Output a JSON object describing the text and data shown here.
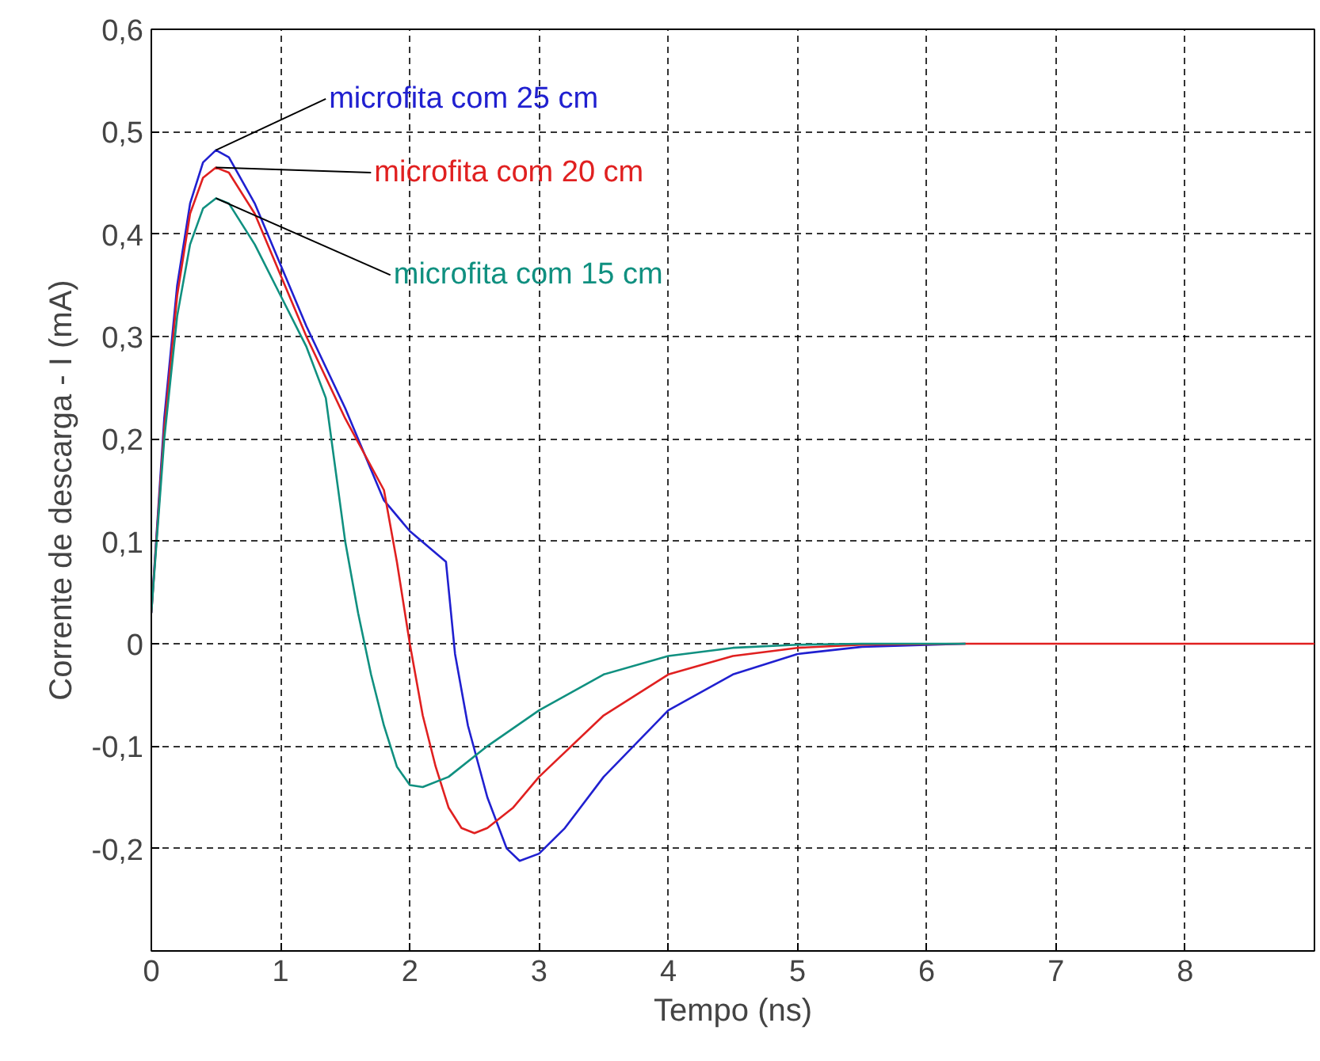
{
  "chart_data": {
    "type": "line",
    "xlabel": "Tempo (ns)",
    "ylabel": "Corrente de descarga - I (mA)",
    "xlim": [
      0,
      9
    ],
    "ylim": [
      -0.3,
      0.6
    ],
    "xticks": [
      0,
      1,
      2,
      3,
      4,
      5,
      6,
      7,
      8
    ],
    "yticks": [
      {
        "value": -0.2,
        "label": "-0,2"
      },
      {
        "value": -0.1,
        "label": "-0,1"
      },
      {
        "value": 0,
        "label": "0"
      },
      {
        "value": 0.1,
        "label": "0,1"
      },
      {
        "value": 0.2,
        "label": "0,2"
      },
      {
        "value": 0.3,
        "label": "0,3"
      },
      {
        "value": 0.4,
        "label": "0,4"
      },
      {
        "value": 0.5,
        "label": "0,5"
      },
      {
        "value": 0.6,
        "label": "0,6"
      }
    ],
    "grid": true,
    "marker": "none",
    "line_style": "solid",
    "series": [
      {
        "name": "microfita com 25 cm",
        "color": "#2020d0",
        "x": [
          0,
          0.1,
          0.2,
          0.3,
          0.4,
          0.5,
          0.6,
          0.8,
          1.0,
          1.2,
          1.5,
          1.8,
          2.0,
          2.28,
          2.35,
          2.45,
          2.6,
          2.75,
          2.85,
          3.0,
          3.2,
          3.5,
          4.0,
          4.5,
          5,
          5.5,
          6.3
        ],
        "values": [
          0.03,
          0.22,
          0.35,
          0.43,
          0.47,
          0.482,
          0.475,
          0.43,
          0.37,
          0.31,
          0.23,
          0.14,
          0.11,
          0.08,
          -0.01,
          -0.08,
          -0.15,
          -0.2,
          -0.212,
          -0.205,
          -0.18,
          -0.13,
          -0.065,
          -0.03,
          -0.01,
          -0.003,
          0
        ]
      },
      {
        "name": "microfita com 20 cm",
        "color": "#e02020",
        "x": [
          0,
          0.1,
          0.2,
          0.3,
          0.4,
          0.5,
          0.6,
          0.8,
          1.0,
          1.2,
          1.5,
          1.8,
          1.9,
          2.0,
          2.1,
          2.2,
          2.3,
          2.4,
          2.5,
          2.6,
          2.8,
          3.0,
          3.5,
          4.0,
          4.5,
          5,
          5.5,
          6.3,
          9
        ],
        "values": [
          0.03,
          0.21,
          0.34,
          0.42,
          0.455,
          0.465,
          0.46,
          0.42,
          0.36,
          0.3,
          0.22,
          0.15,
          0.08,
          0.0,
          -0.07,
          -0.12,
          -0.16,
          -0.18,
          -0.185,
          -0.18,
          -0.16,
          -0.13,
          -0.07,
          -0.03,
          -0.012,
          -0.004,
          -0.001,
          0,
          0
        ]
      },
      {
        "name": "microfita com 15 cm",
        "color": "#109080",
        "x": [
          0,
          0.1,
          0.2,
          0.3,
          0.4,
          0.5,
          0.6,
          0.8,
          1.0,
          1.2,
          1.35,
          1.5,
          1.6,
          1.7,
          1.8,
          1.9,
          2.0,
          2.1,
          2.3,
          2.6,
          3.0,
          3.5,
          4.0,
          4.5,
          5,
          5.5,
          6.3
        ],
        "values": [
          0.03,
          0.2,
          0.32,
          0.39,
          0.425,
          0.435,
          0.43,
          0.39,
          0.34,
          0.29,
          0.24,
          0.1,
          0.03,
          -0.03,
          -0.08,
          -0.12,
          -0.138,
          -0.14,
          -0.13,
          -0.1,
          -0.065,
          -0.03,
          -0.012,
          -0.004,
          -0.001,
          0,
          0
        ]
      }
    ]
  }
}
